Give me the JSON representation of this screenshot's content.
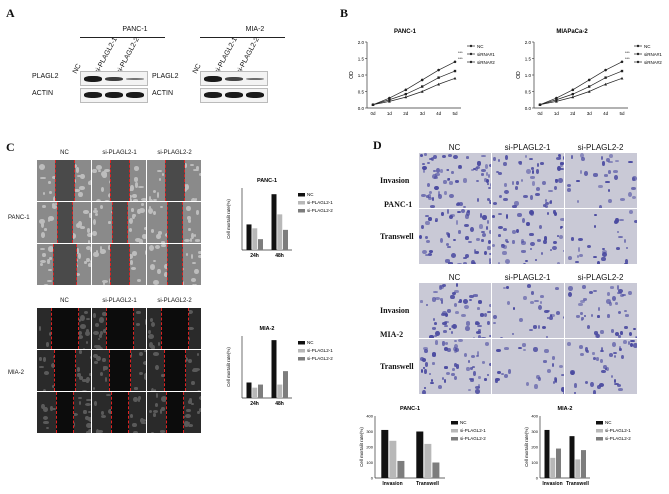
{
  "panelA": {
    "label": "A",
    "blots": [
      {
        "cell": "PANC-1",
        "lanes": [
          "NC",
          "si-PLAGL2-1",
          "si-PLAGL2-2"
        ],
        "rows": [
          "PLAGL2",
          "ACTIN"
        ],
        "plagl2_intensity": [
          1.0,
          0.75,
          0.35
        ]
      },
      {
        "cell": "MIA-2",
        "lanes": [
          "NC",
          "si-PLAGL2-1",
          "si-PLAGL2-2"
        ],
        "rows": [
          "PLAGL2",
          "ACTIN"
        ],
        "plagl2_intensity": [
          1.0,
          0.7,
          0.4
        ]
      }
    ]
  },
  "panelB": {
    "label": "B"
  },
  "panelC": {
    "label": "C",
    "wound_cols": [
      "NC",
      "si-PLAGL2-1",
      "si-PLAGL2-2"
    ],
    "wound_rows": [
      "PANC-1",
      "MIA-2"
    ]
  },
  "panelD": {
    "label": "D",
    "cols": [
      "NC",
      "si-PLAGL2-1",
      "si-PLAGL2-2"
    ],
    "blocks": [
      {
        "cell": "PANC-1",
        "rows": [
          "Invasion",
          "Transwell"
        ]
      },
      {
        "cell": "MIA-2",
        "rows": [
          "Invasion",
          "Transwell"
        ]
      }
    ]
  },
  "colors": {
    "NC": "#111111",
    "si1": "#b8b8b8",
    "si2": "#7d7d7d",
    "crystal_violet": "#4a4aa0"
  },
  "chart_data": [
    {
      "type": "line",
      "title": "PANC-1",
      "ylabel": "OD",
      "x": [
        "0d",
        "1d",
        "2d",
        "3d",
        "4d",
        "5d"
      ],
      "ylim": [
        0,
        2
      ],
      "yticks": [
        "0.0",
        "0.5",
        "1.0",
        "1.5",
        "2.0"
      ],
      "legend": "right",
      "series": [
        {
          "name": "NC",
          "values": [
            0.1,
            0.3,
            0.55,
            0.85,
            1.15,
            1.4
          ]
        },
        {
          "name": "siRNA#1",
          "values": [
            0.1,
            0.25,
            0.42,
            0.65,
            0.92,
            1.12
          ]
        },
        {
          "name": "siRNA#2",
          "values": [
            0.1,
            0.2,
            0.33,
            0.5,
            0.72,
            0.9
          ]
        }
      ],
      "annotations": [
        "***",
        "***"
      ]
    },
    {
      "type": "line",
      "title": "MIAPaCa-2",
      "ylabel": "OD",
      "x": [
        "0d",
        "1d",
        "2d",
        "3d",
        "4d",
        "5d"
      ],
      "ylim": [
        0,
        2
      ],
      "yticks": [
        "0.0",
        "0.5",
        "1.0",
        "1.5",
        "2.0"
      ],
      "legend": "right",
      "series": [
        {
          "name": "NC",
          "values": [
            0.1,
            0.3,
            0.55,
            0.85,
            1.15,
            1.4
          ]
        },
        {
          "name": "siRNA#1",
          "values": [
            0.1,
            0.25,
            0.42,
            0.65,
            0.92,
            1.12
          ]
        },
        {
          "name": "siRNA#2",
          "values": [
            0.1,
            0.2,
            0.33,
            0.5,
            0.72,
            0.9
          ]
        }
      ],
      "annotations": [
        "***",
        "***"
      ]
    },
    {
      "type": "bar",
      "title": "PANC-1",
      "ylabel": "Cell mortalit rate(%)",
      "categories": [
        "24h",
        "48h"
      ],
      "ylim": [
        0,
        80
      ],
      "legend": "right",
      "series": [
        {
          "name": "NC",
          "values": [
            33,
            72
          ]
        },
        {
          "name": "si-PLAGL2-1",
          "values": [
            28,
            46
          ]
        },
        {
          "name": "si-PLAGL2-2",
          "values": [
            14,
            26
          ]
        }
      ]
    },
    {
      "type": "bar",
      "title": "MIA-2",
      "ylabel": "Cell mortalit rate(%)",
      "categories": [
        "24h",
        "48h"
      ],
      "ylim": [
        0,
        60
      ],
      "legend": "right",
      "series": [
        {
          "name": "NC",
          "values": [
            15,
            56
          ]
        },
        {
          "name": "si-PLAGL2-1",
          "values": [
            10,
            13
          ]
        },
        {
          "name": "si-PLAGL2-2",
          "values": [
            13,
            26
          ]
        }
      ]
    },
    {
      "type": "bar",
      "title": "PANC-1",
      "ylabel": "Cell mortalit rate(%)",
      "categories": [
        "Invasion",
        "Transwell"
      ],
      "ylim": [
        0,
        400
      ],
      "yticks": [
        "0",
        "100",
        "200",
        "300",
        "400"
      ],
      "legend": "right",
      "series": [
        {
          "name": "NC",
          "values": [
            310,
            300
          ]
        },
        {
          "name": "si-PLAGL2-1",
          "values": [
            240,
            220
          ]
        },
        {
          "name": "si-PLAGL2-2",
          "values": [
            110,
            100
          ]
        }
      ]
    },
    {
      "type": "bar",
      "title": "MIA-2",
      "ylabel": "Cell mortalit rate(%)",
      "categories": [
        "Invasion",
        "Transwell"
      ],
      "ylim": [
        0,
        400
      ],
      "yticks": [
        "0",
        "100",
        "200",
        "300",
        "400"
      ],
      "legend": "right",
      "series": [
        {
          "name": "NC",
          "values": [
            310,
            270
          ]
        },
        {
          "name": "si-PLAGL2-1",
          "values": [
            130,
            120
          ]
        },
        {
          "name": "si-PLAGL2-2",
          "values": [
            190,
            180
          ]
        }
      ]
    }
  ]
}
